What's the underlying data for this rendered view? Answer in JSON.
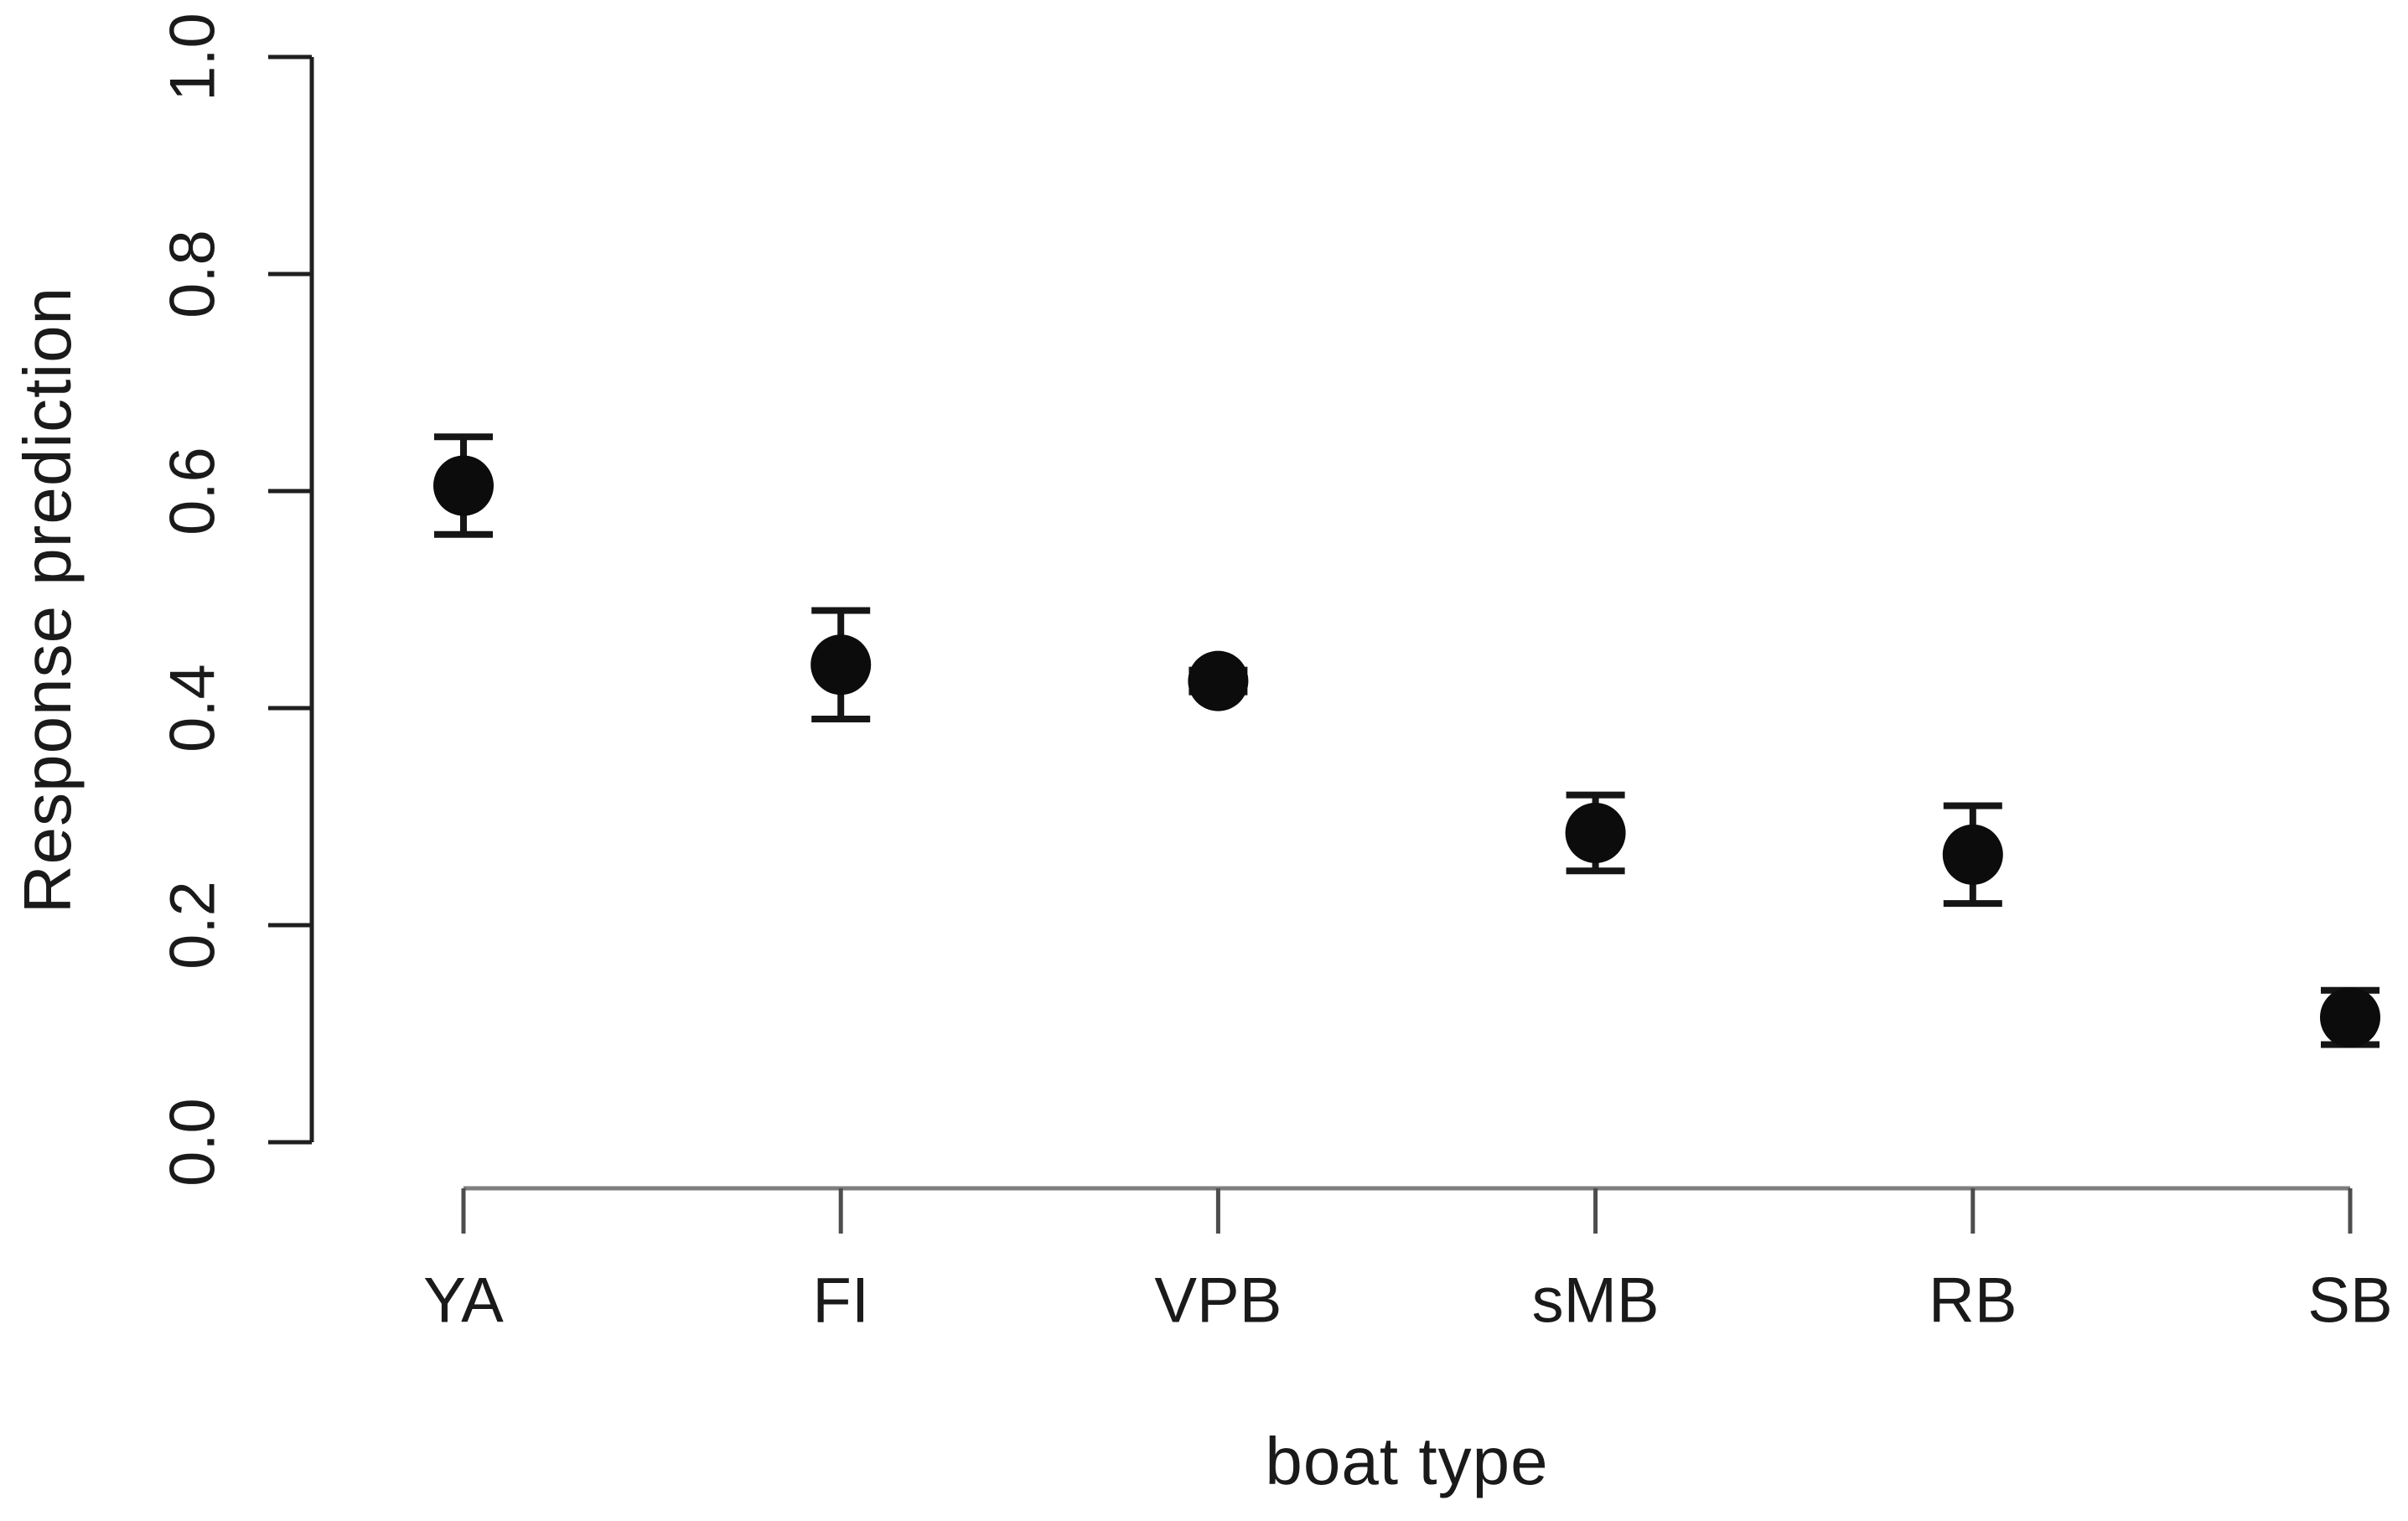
{
  "figure": {
    "background": "#ffffff",
    "text_color": "#1a1a1a"
  },
  "chart_data": {
    "type": "scatter",
    "title": "",
    "xlabel": "boat type",
    "ylabel": "Response prediction",
    "categories": [
      "YA",
      "FI",
      "VPB",
      "sMB",
      "RB",
      "SB"
    ],
    "series": [
      {
        "name": "Response prediction",
        "values": [
          0.605,
          0.44,
          0.425,
          0.285,
          0.265,
          0.115
        ],
        "lower": [
          0.56,
          0.39,
          0.415,
          0.25,
          0.22,
          0.09
        ],
        "upper": [
          0.65,
          0.49,
          0.435,
          0.32,
          0.31,
          0.14
        ]
      }
    ],
    "ylim": [
      0,
      1
    ],
    "ytick_labels": [
      "0.0",
      "0.2",
      "0.4",
      "0.6",
      "0.8",
      "1.0"
    ],
    "ytick_values": [
      0,
      0.2,
      0.4,
      0.6,
      0.8,
      1.0
    ],
    "grid": false,
    "legend": false,
    "marker": "filled-circle",
    "error_bars": true,
    "colors": {
      "point": "#0c0c0c",
      "error_bar": "#151515",
      "y_axis": "#1f1f1f",
      "x_axis_line": "#7e7e7e",
      "x_tick": "#4d4d4d",
      "tick_label": "#1a1a1a"
    }
  }
}
